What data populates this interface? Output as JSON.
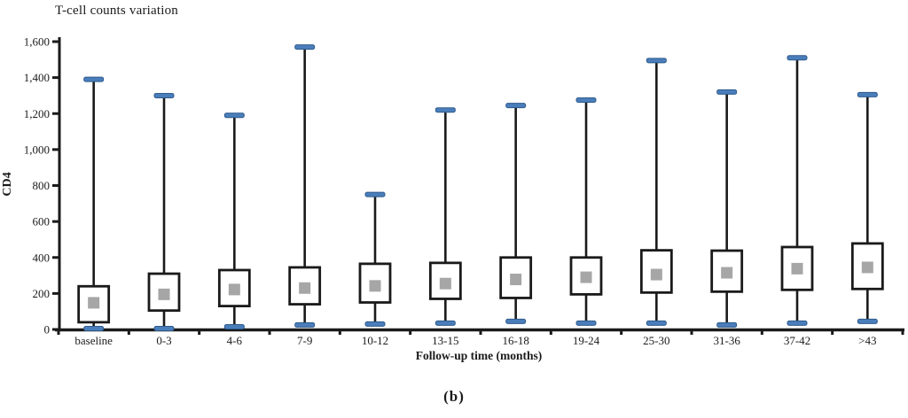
{
  "chart_data": {
    "type": "boxplot",
    "title": "T-cell counts variation",
    "xlabel": "Follow-up time (months)",
    "ylabel": "CD4",
    "figure_caption": "(b)",
    "ylim": [
      0,
      1600
    ],
    "ytick_interval": 200,
    "ytick_labels": [
      "0",
      "200",
      "400",
      "600",
      "800",
      "1,000",
      "1,200",
      "1,400",
      "1,600"
    ],
    "grid": "off",
    "legend": "none",
    "categories": [
      "baseline",
      "0-3",
      "4-6",
      "7-9",
      "10-12",
      "13-15",
      "16-18",
      "19-24",
      "25-30",
      "31-36",
      "37-42",
      ">43"
    ],
    "boxes": [
      {
        "category": "baseline",
        "whisker_low": 5,
        "q1": 40,
        "mean": 148,
        "q3": 240,
        "whisker_high": 1390
      },
      {
        "category": "0-3",
        "whisker_low": 5,
        "q1": 105,
        "mean": 195,
        "q3": 310,
        "whisker_high": 1300
      },
      {
        "category": "4-6",
        "whisker_low": 15,
        "q1": 130,
        "mean": 222,
        "q3": 330,
        "whisker_high": 1190
      },
      {
        "category": "7-9",
        "whisker_low": 25,
        "q1": 140,
        "mean": 230,
        "q3": 345,
        "whisker_high": 1570
      },
      {
        "category": "10-12",
        "whisker_low": 30,
        "q1": 150,
        "mean": 242,
        "q3": 365,
        "whisker_high": 750
      },
      {
        "category": "13-15",
        "whisker_low": 35,
        "q1": 170,
        "mean": 255,
        "q3": 370,
        "whisker_high": 1220
      },
      {
        "category": "16-18",
        "whisker_low": 45,
        "q1": 175,
        "mean": 278,
        "q3": 400,
        "whisker_high": 1245
      },
      {
        "category": "19-24",
        "whisker_low": 35,
        "q1": 195,
        "mean": 290,
        "q3": 400,
        "whisker_high": 1275
      },
      {
        "category": "25-30",
        "whisker_low": 35,
        "q1": 205,
        "mean": 305,
        "q3": 440,
        "whisker_high": 1495
      },
      {
        "category": "31-36",
        "whisker_low": 25,
        "q1": 210,
        "mean": 315,
        "q3": 438,
        "whisker_high": 1320
      },
      {
        "category": "37-42",
        "whisker_low": 35,
        "q1": 220,
        "mean": 338,
        "q3": 458,
        "whisker_high": 1510
      },
      {
        "category": ">43",
        "whisker_low": 45,
        "q1": 225,
        "mean": 345,
        "q3": 478,
        "whisker_high": 1305
      }
    ],
    "colors": {
      "whisker_cap_fill": "#4A7EBB",
      "whisker_cap_border": "#2F5A8B",
      "box_border": "#1a1a1a",
      "box_fill": "#FFFFFF",
      "mean_marker": "#A6A6A6",
      "axis": "#1a1a1a"
    }
  }
}
